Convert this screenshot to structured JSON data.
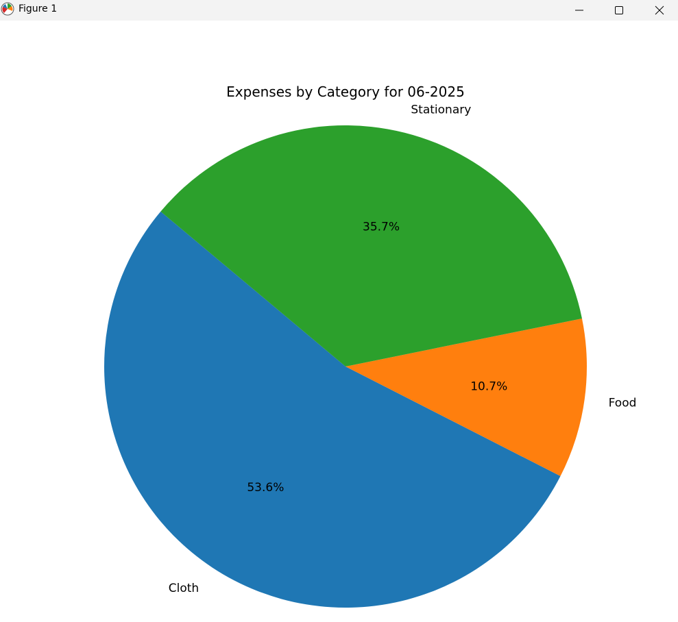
{
  "window": {
    "title": "Figure 1",
    "icons": {
      "app": "matplotlib-logo-icon",
      "minimize": "minimize-icon",
      "maximize": "maximize-icon",
      "close": "close-icon"
    }
  },
  "chart_data": {
    "type": "pie",
    "title": "Expenses by Category for 06-2025",
    "labels": [
      "Cloth",
      "Food",
      "Stationary"
    ],
    "values": [
      53.6,
      10.7,
      35.7
    ],
    "pct_labels": [
      "53.6%",
      "10.7%",
      "35.7%"
    ],
    "colors": [
      "#1f77b4",
      "#ff7f0e",
      "#2ca02c"
    ],
    "start_angle_deg": 140,
    "direction": "counterclockwise"
  }
}
